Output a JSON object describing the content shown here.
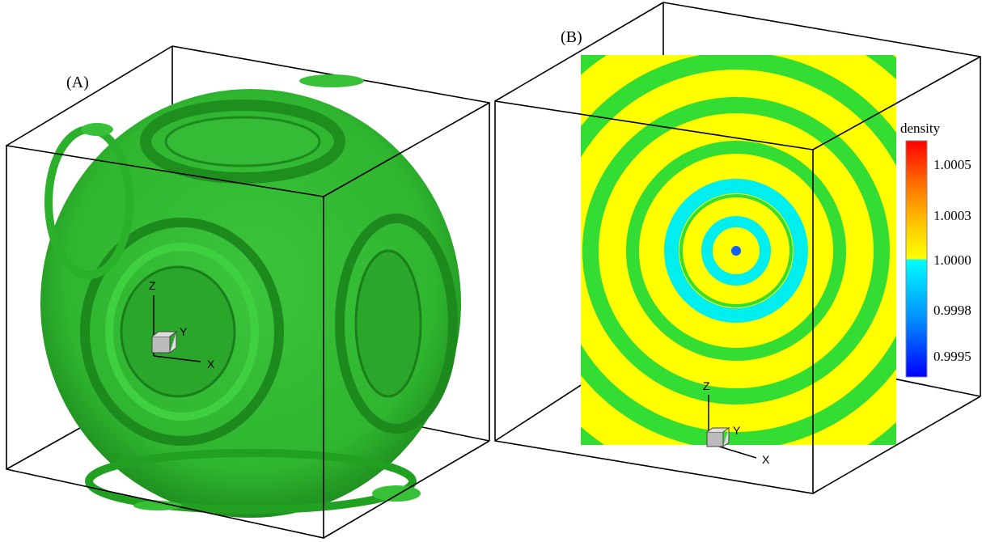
{
  "panels": [
    {
      "label": "(A)",
      "axes": {
        "z": "Z",
        "y": "Y",
        "x": "X"
      }
    },
    {
      "label": "(B)",
      "axes": {
        "z": "Z",
        "y": "Y",
        "x": "X"
      },
      "colorbar": {
        "title": "density",
        "ticks": [
          "1.0005",
          "1.0003",
          "1.0000",
          "0.9998",
          "0.9995"
        ]
      }
    }
  ]
}
